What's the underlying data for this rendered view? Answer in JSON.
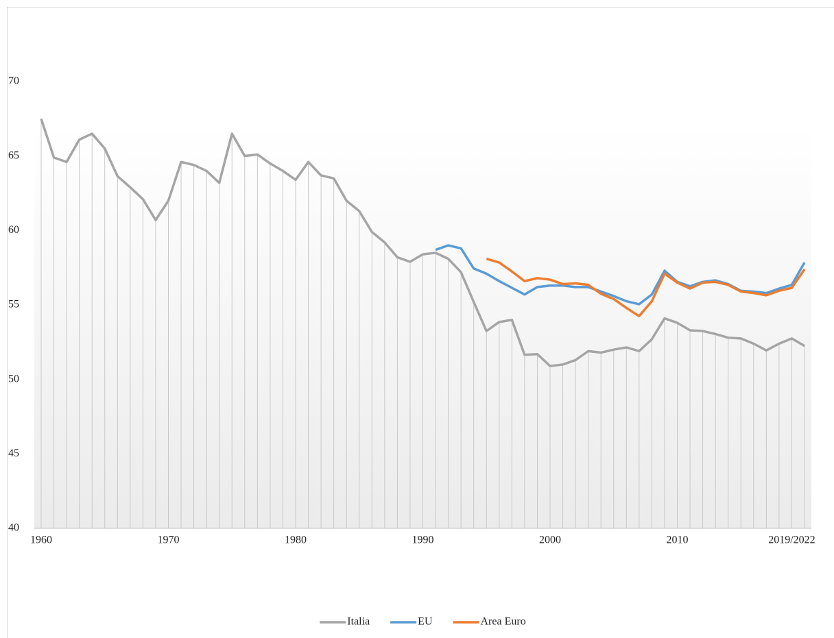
{
  "chart_data": {
    "type": "line",
    "categories": [
      "1960",
      null,
      null,
      null,
      null,
      null,
      null,
      null,
      null,
      null,
      "1970",
      null,
      null,
      null,
      null,
      null,
      null,
      null,
      null,
      null,
      "1980",
      null,
      null,
      null,
      null,
      null,
      null,
      null,
      null,
      null,
      "1990",
      null,
      null,
      null,
      null,
      null,
      null,
      null,
      null,
      null,
      "2000",
      null,
      null,
      null,
      null,
      null,
      null,
      null,
      null,
      null,
      "2010",
      null,
      null,
      null,
      null,
      null,
      null,
      null,
      null,
      "2019/2022",
      null
    ],
    "series": [
      {
        "name": "Italia",
        "color": "#a5a5a5",
        "values": [
          67.5,
          64.9,
          64.6,
          66.1,
          66.5,
          65.5,
          63.65,
          62.9,
          62.1,
          60.7,
          62.0,
          64.6,
          64.4,
          64.0,
          63.2,
          66.5,
          65.0,
          65.1,
          64.5,
          64.0,
          63.4,
          64.6,
          63.7,
          63.5,
          62.0,
          61.3,
          59.9,
          59.2,
          58.2,
          57.9,
          58.4,
          58.5,
          58.1,
          57.2,
          55.2,
          53.25,
          53.85,
          54.0,
          51.65,
          51.7,
          50.9,
          51.0,
          51.3,
          51.9,
          51.8,
          52.0,
          52.15,
          51.9,
          52.7,
          54.1,
          53.8,
          53.3,
          53.25,
          53.05,
          52.8,
          52.75,
          52.4,
          51.95,
          52.4,
          52.75,
          52.25
        ]
      },
      {
        "name": "EU",
        "color": "#5b9bd5",
        "values": [
          null,
          null,
          null,
          null,
          null,
          null,
          null,
          null,
          null,
          null,
          null,
          null,
          null,
          null,
          null,
          null,
          null,
          null,
          null,
          null,
          null,
          null,
          null,
          null,
          null,
          null,
          null,
          null,
          null,
          null,
          null,
          58.7,
          59.0,
          58.8,
          57.45,
          57.1,
          56.6,
          56.15,
          55.7,
          56.2,
          56.3,
          56.3,
          56.2,
          56.2,
          55.9,
          55.6,
          55.25,
          55.05,
          55.7,
          57.3,
          56.55,
          56.25,
          56.55,
          56.65,
          56.4,
          55.95,
          55.9,
          55.8,
          56.1,
          56.35,
          57.85
        ]
      },
      {
        "name": "Area Euro",
        "color": "#ed7d31",
        "values": [
          null,
          null,
          null,
          null,
          null,
          null,
          null,
          null,
          null,
          null,
          null,
          null,
          null,
          null,
          null,
          null,
          null,
          null,
          null,
          null,
          null,
          null,
          null,
          null,
          null,
          null,
          null,
          null,
          null,
          null,
          null,
          null,
          null,
          null,
          null,
          58.1,
          57.85,
          57.25,
          56.6,
          56.8,
          56.7,
          56.4,
          56.45,
          56.35,
          55.75,
          55.4,
          54.8,
          54.25,
          55.25,
          57.1,
          56.5,
          56.1,
          56.5,
          56.55,
          56.35,
          55.9,
          55.8,
          55.65,
          55.95,
          56.15,
          57.4
        ]
      }
    ],
    "ylim": [
      40,
      70
    ],
    "yticks": [
      40,
      45,
      50,
      55,
      60,
      65,
      70
    ],
    "drop_lines": true,
    "legend": "bottom"
  }
}
